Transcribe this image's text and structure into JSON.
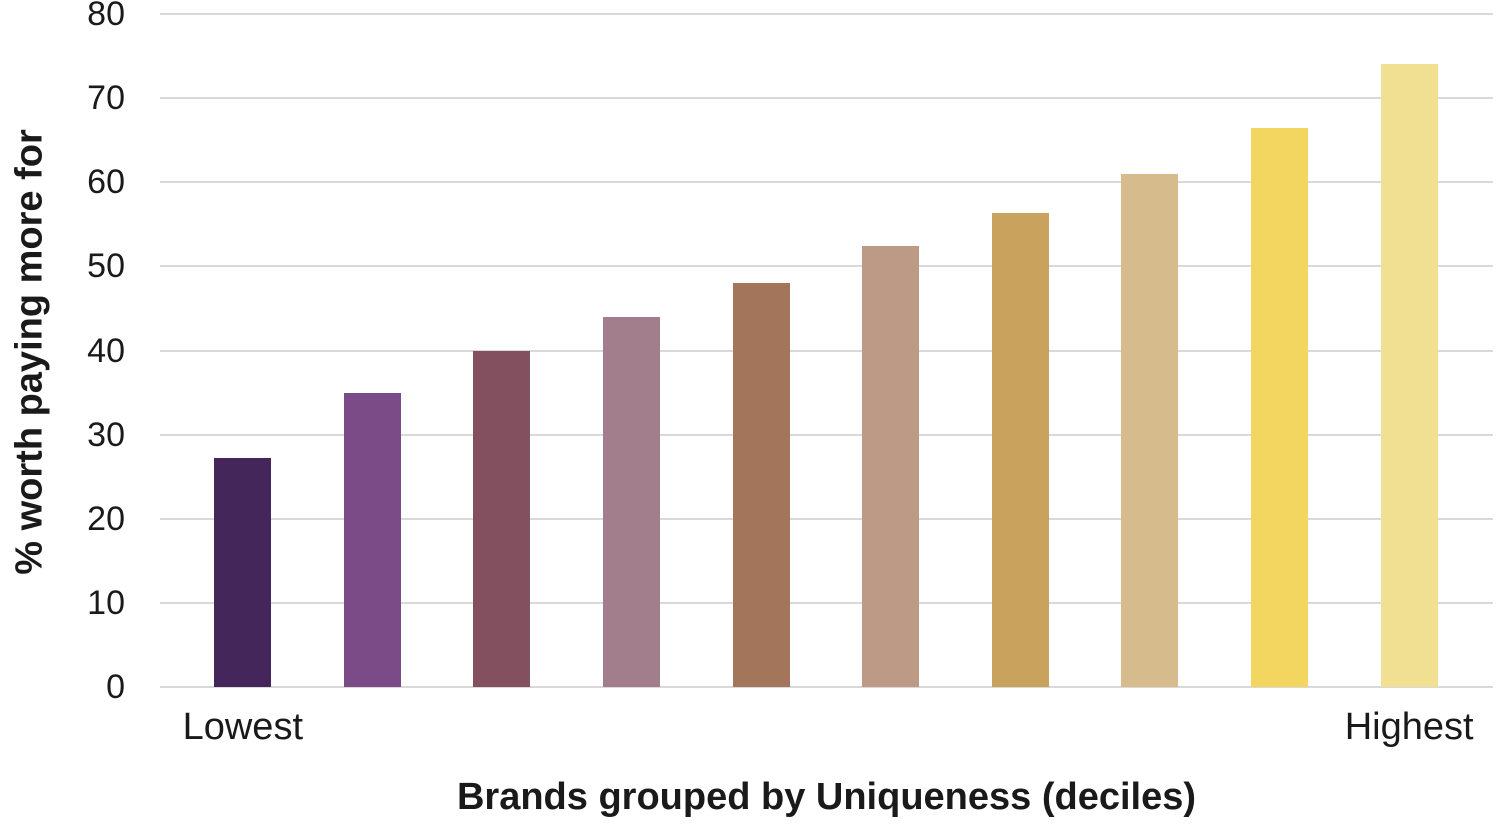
{
  "chart_data": {
    "type": "bar",
    "title": "",
    "xlabel": "Brands grouped by Uniqueness (deciles)",
    "ylabel": "% worth paying more for",
    "categories": [
      "Lowest",
      "",
      "",
      "",
      "",
      "",
      "",
      "",
      "",
      "Highest"
    ],
    "values": [
      27.2,
      35,
      40,
      44,
      48,
      52.4,
      56.4,
      61,
      66.4,
      74
    ],
    "bar_colors": [
      "#45265a",
      "#7a4b87",
      "#82505f",
      "#a27e8c",
      "#a3755b",
      "#bc9a85",
      "#c9a25d",
      "#d6bc8c",
      "#f3d65f",
      "#f2e092"
    ],
    "ylim": [
      0,
      80
    ],
    "yticks": [
      0,
      10,
      20,
      30,
      40,
      50,
      60,
      70,
      80
    ],
    "grid": "horizontal",
    "gridline_color": "#d9d9d9",
    "text_color": "#1a1a1a",
    "background_color": "#ffffff",
    "legend": "none"
  }
}
